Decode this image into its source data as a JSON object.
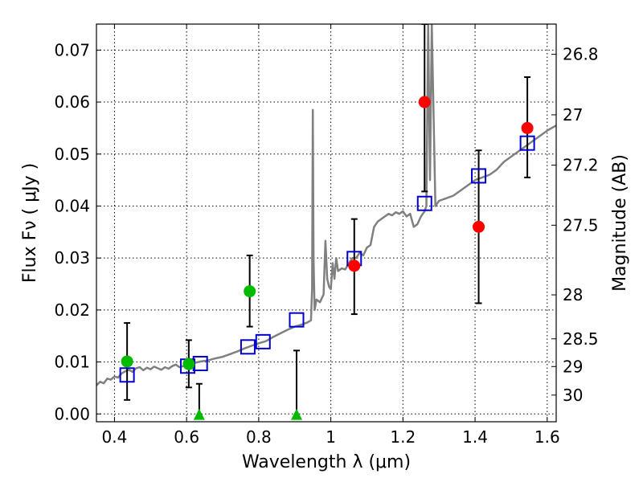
{
  "chart_data": {
    "type": "scatter",
    "xlabel": "Wavelength  λ (μm)",
    "ylabel": "Flux  Fν  ( μJy )",
    "ylabel_right": "Magnitude (AB)",
    "xlim": [
      0.35,
      1.625
    ],
    "ylim": [
      -0.0015,
      0.075
    ],
    "grid": true,
    "x_ticks": [
      0.4,
      0.6,
      0.8,
      1.0,
      1.2,
      1.4,
      1.6
    ],
    "x_tick_labels": [
      "0.4",
      "0.6",
      "0.8",
      "1",
      "1.2",
      "1.4",
      "1.6"
    ],
    "y_ticks": [
      0.0,
      0.01,
      0.02,
      0.03,
      0.04,
      0.05,
      0.06,
      0.07
    ],
    "y_tick_labels": [
      "0.00",
      "0.01",
      "0.02",
      "0.03",
      "0.04",
      "0.05",
      "0.06",
      "0.07"
    ],
    "mag_ticks": [
      26.8,
      27,
      27.2,
      27.5,
      28,
      28.5,
      29,
      30
    ],
    "mag_tick_labels": [
      "26.8",
      "27",
      "27.2",
      "27.5",
      "28",
      "28.5",
      "29",
      "30"
    ],
    "series": [
      {
        "marker": "circle",
        "color": "#00bb00",
        "points": [
          {
            "x": 0.435,
            "y": 0.0101,
            "ylo": 0.0027,
            "yhi": 0.0175
          },
          {
            "x": 0.606,
            "y": 0.0096,
            "ylo": 0.0051,
            "yhi": 0.0142
          },
          {
            "x": 0.775,
            "y": 0.0236,
            "ylo": 0.0168,
            "yhi": 0.0305
          }
        ]
      },
      {
        "marker": "triangle-up",
        "color": "#00bb00",
        "points": [
          {
            "x": 0.635,
            "y": -0.0002,
            "ylo": -0.0002,
            "yhi": 0.0058
          },
          {
            "x": 0.905,
            "y": -0.0002,
            "ylo": -0.0002,
            "yhi": 0.0122
          }
        ]
      },
      {
        "marker": "circle",
        "color": "#ff0000",
        "points": [
          {
            "x": 1.065,
            "y": 0.0285,
            "ylo": 0.0192,
            "yhi": 0.0375
          },
          {
            "x": 1.26,
            "y": 0.06,
            "ylo": 0.0428,
            "yhi": 0.075
          },
          {
            "x": 1.41,
            "y": 0.036,
            "ylo": 0.0213,
            "yhi": 0.0507
          },
          {
            "x": 1.545,
            "y": 0.055,
            "ylo": 0.0455,
            "yhi": 0.0648
          }
        ]
      },
      {
        "marker": "square-open",
        "color": "#0000cc",
        "points": [
          {
            "x": 0.435,
            "y": 0.0075
          },
          {
            "x": 0.603,
            "y": 0.0092
          },
          {
            "x": 0.638,
            "y": 0.0097
          },
          {
            "x": 0.77,
            "y": 0.0129
          },
          {
            "x": 0.812,
            "y": 0.0139
          },
          {
            "x": 0.905,
            "y": 0.0181
          },
          {
            "x": 1.065,
            "y": 0.0299
          },
          {
            "x": 1.26,
            "y": 0.0405
          },
          {
            "x": 1.41,
            "y": 0.0458
          },
          {
            "x": 1.545,
            "y": 0.0521
          }
        ]
      },
      {
        "marker": "line",
        "color": "#808080",
        "points": [
          [
            0.35,
            0.0055
          ],
          [
            0.36,
            0.0062
          ],
          [
            0.37,
            0.0059
          ],
          [
            0.38,
            0.0068
          ],
          [
            0.39,
            0.0066
          ],
          [
            0.4,
            0.0072
          ],
          [
            0.41,
            0.007
          ],
          [
            0.42,
            0.0078
          ],
          [
            0.43,
            0.0082
          ],
          [
            0.44,
            0.0085
          ],
          [
            0.45,
            0.0081
          ],
          [
            0.46,
            0.0088
          ],
          [
            0.47,
            0.009
          ],
          [
            0.48,
            0.0084
          ],
          [
            0.49,
            0.0089
          ],
          [
            0.5,
            0.0086
          ],
          [
            0.51,
            0.0091
          ],
          [
            0.52,
            0.0088
          ],
          [
            0.53,
            0.0085
          ],
          [
            0.54,
            0.009
          ],
          [
            0.55,
            0.0087
          ],
          [
            0.56,
            0.0092
          ],
          [
            0.57,
            0.0095
          ],
          [
            0.58,
            0.009
          ],
          [
            0.6,
            0.0094
          ],
          [
            0.62,
            0.0098
          ],
          [
            0.64,
            0.0101
          ],
          [
            0.66,
            0.0103
          ],
          [
            0.68,
            0.0107
          ],
          [
            0.7,
            0.011
          ],
          [
            0.72,
            0.0115
          ],
          [
            0.74,
            0.012
          ],
          [
            0.76,
            0.0126
          ],
          [
            0.78,
            0.0131
          ],
          [
            0.8,
            0.0136
          ],
          [
            0.82,
            0.014
          ],
          [
            0.84,
            0.0148
          ],
          [
            0.86,
            0.0155
          ],
          [
            0.88,
            0.0162
          ],
          [
            0.9,
            0.0168
          ],
          [
            0.92,
            0.0172
          ],
          [
            0.935,
            0.0176
          ],
          [
            0.945,
            0.018
          ],
          [
            0.948,
            0.024
          ],
          [
            0.95,
            0.0585
          ],
          [
            0.952,
            0.03
          ],
          [
            0.955,
            0.02
          ],
          [
            0.96,
            0.022
          ],
          [
            0.97,
            0.0215
          ],
          [
            0.98,
            0.023
          ],
          [
            0.985,
            0.0333
          ],
          [
            0.99,
            0.026
          ],
          [
            0.995,
            0.0245
          ],
          [
            1.0,
            0.024
          ],
          [
            1.005,
            0.029
          ],
          [
            1.01,
            0.026
          ],
          [
            1.015,
            0.03
          ],
          [
            1.02,
            0.0275
          ],
          [
            1.03,
            0.028
          ],
          [
            1.04,
            0.0278
          ],
          [
            1.05,
            0.029
          ],
          [
            1.06,
            0.03
          ],
          [
            1.07,
            0.03
          ],
          [
            1.08,
            0.031
          ],
          [
            1.09,
            0.0305
          ],
          [
            1.1,
            0.032
          ],
          [
            1.11,
            0.0325
          ],
          [
            1.12,
            0.036
          ],
          [
            1.13,
            0.037
          ],
          [
            1.14,
            0.0375
          ],
          [
            1.15,
            0.038
          ],
          [
            1.16,
            0.0385
          ],
          [
            1.17,
            0.0382
          ],
          [
            1.18,
            0.0388
          ],
          [
            1.19,
            0.0385
          ],
          [
            1.2,
            0.039
          ],
          [
            1.21,
            0.038
          ],
          [
            1.22,
            0.0385
          ],
          [
            1.23,
            0.036
          ],
          [
            1.24,
            0.0365
          ],
          [
            1.25,
            0.038
          ],
          [
            1.26,
            0.039
          ],
          [
            1.265,
            0.04
          ],
          [
            1.27,
            0.075
          ],
          [
            1.275,
            0.045
          ],
          [
            1.28,
            0.075
          ],
          [
            1.29,
            0.04
          ],
          [
            1.3,
            0.041
          ],
          [
            1.32,
            0.0415
          ],
          [
            1.34,
            0.042
          ],
          [
            1.36,
            0.043
          ],
          [
            1.38,
            0.044
          ],
          [
            1.4,
            0.045
          ],
          [
            1.42,
            0.0455
          ],
          [
            1.44,
            0.046
          ],
          [
            1.46,
            0.047
          ],
          [
            1.48,
            0.0485
          ],
          [
            1.5,
            0.0495
          ],
          [
            1.52,
            0.0505
          ],
          [
            1.54,
            0.0515
          ],
          [
            1.56,
            0.0525
          ],
          [
            1.58,
            0.0535
          ],
          [
            1.6,
            0.0545
          ],
          [
            1.625,
            0.0555
          ]
        ]
      }
    ]
  }
}
